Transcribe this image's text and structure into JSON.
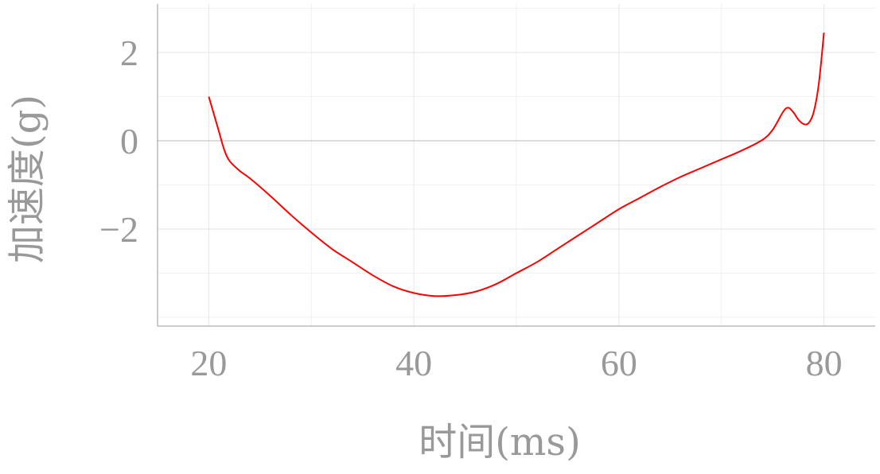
{
  "chart_data": {
    "type": "line",
    "title": "",
    "xlabel": "时间(ms)",
    "ylabel": "加速度(g)",
    "xlim": [
      15,
      85
    ],
    "ylim": [
      -4.2,
      3.1
    ],
    "grid": true,
    "x_ticks": [
      20,
      40,
      60,
      80
    ],
    "y_ticks": [
      -2,
      0,
      2
    ],
    "y_tick_labels": [
      "−2",
      "0",
      "2"
    ],
    "series": [
      {
        "name": "加速度",
        "color": "#ff0000",
        "points": [
          [
            20.0,
            1.0
          ],
          [
            20.5,
            0.6
          ],
          [
            21.0,
            0.2
          ],
          [
            21.5,
            -0.2
          ],
          [
            22.0,
            -0.45
          ],
          [
            23.0,
            -0.68
          ],
          [
            24.0,
            -0.85
          ],
          [
            26.0,
            -1.25
          ],
          [
            28.0,
            -1.68
          ],
          [
            30.0,
            -2.08
          ],
          [
            32.0,
            -2.45
          ],
          [
            34.0,
            -2.75
          ],
          [
            36.0,
            -3.05
          ],
          [
            38.0,
            -3.3
          ],
          [
            40.0,
            -3.45
          ],
          [
            42.0,
            -3.52
          ],
          [
            44.0,
            -3.5
          ],
          [
            46.0,
            -3.42
          ],
          [
            48.0,
            -3.25
          ],
          [
            50.0,
            -3.0
          ],
          [
            52.0,
            -2.75
          ],
          [
            54.0,
            -2.45
          ],
          [
            56.0,
            -2.15
          ],
          [
            58.0,
            -1.85
          ],
          [
            60.0,
            -1.55
          ],
          [
            62.0,
            -1.3
          ],
          [
            64.0,
            -1.05
          ],
          [
            66.0,
            -0.82
          ],
          [
            68.0,
            -0.62
          ],
          [
            70.0,
            -0.42
          ],
          [
            72.0,
            -0.22
          ],
          [
            74.0,
            0.02
          ],
          [
            75.0,
            0.25
          ],
          [
            76.0,
            0.65
          ],
          [
            76.5,
            0.75
          ],
          [
            77.0,
            0.65
          ],
          [
            77.5,
            0.48
          ],
          [
            78.0,
            0.38
          ],
          [
            78.5,
            0.4
          ],
          [
            79.0,
            0.65
          ],
          [
            79.5,
            1.3
          ],
          [
            80.0,
            2.45
          ]
        ]
      }
    ]
  }
}
